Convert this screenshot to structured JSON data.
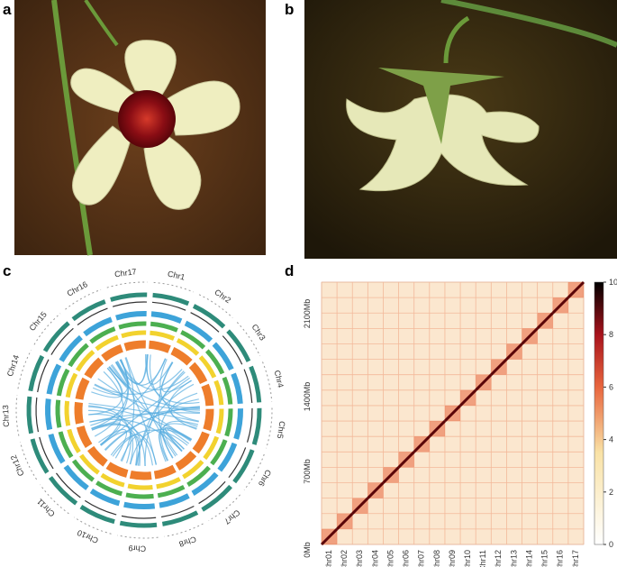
{
  "panels": [
    {
      "label": "a"
    },
    {
      "label": "b"
    },
    {
      "label": "c",
      "chromosomes": [
        "Chr1",
        "Chr2",
        "Chr3",
        "Chr4",
        "Chr5",
        "Chr6",
        "Chr7",
        "Chr8",
        "Chr9",
        "Chr10",
        "Chr11",
        "Chr12",
        "Chr13",
        "Chr14",
        "Chr15",
        "Chr16",
        "Chr17"
      ]
    },
    {
      "label": "d",
      "x_labels": [
        "Chr01",
        "Chr02",
        "Chr03",
        "Chr04",
        "Chr05",
        "Chr06",
        "Chr07",
        "Chr08",
        "Chr09",
        "Chr10",
        "Chr11",
        "Chr12",
        "Chr13",
        "Chr14",
        "Chr15",
        "Chr16",
        "Chr17"
      ],
      "y_labels": [
        "0Mb",
        "700Mb",
        "1400Mb",
        "2100Mb"
      ],
      "colorbar_ticks": [
        0,
        2,
        4,
        6,
        8,
        10
      ]
    }
  ]
}
